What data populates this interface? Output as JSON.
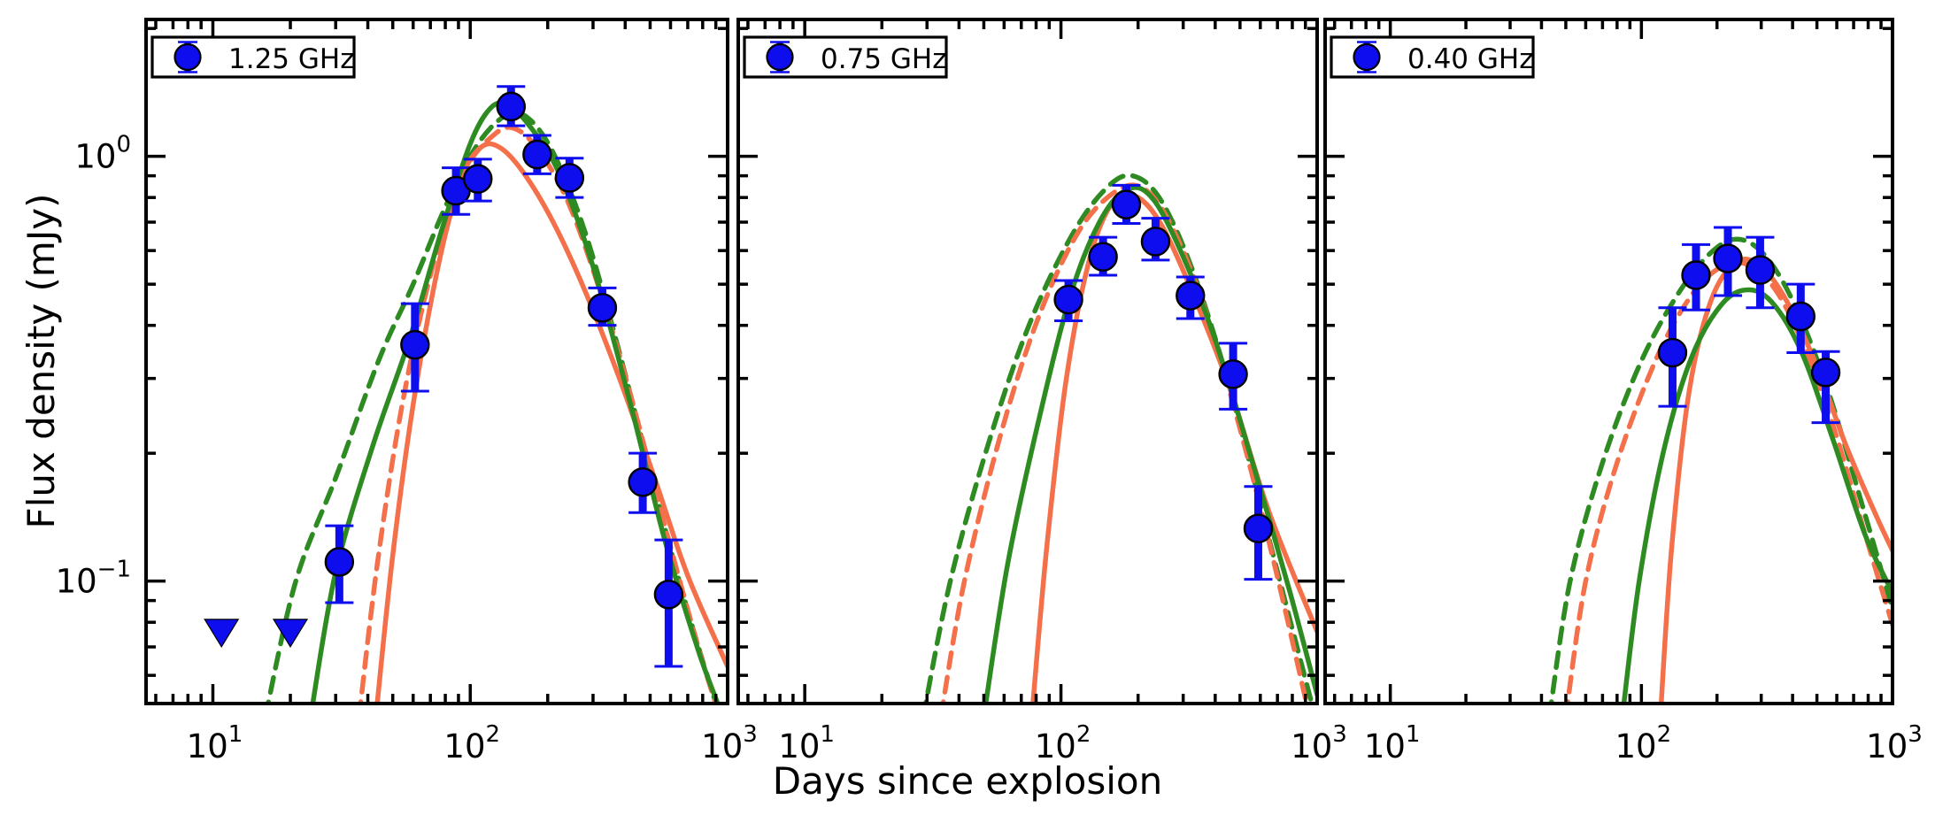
{
  "figure": {
    "xlabel": "Days since explosion",
    "ylabel": "Flux density (mJy)",
    "background": "#ffffff",
    "colors": {
      "points": "#0d0dee",
      "point_edge": "#000000",
      "model_green": "#2e8b22",
      "model_orange": "#f4704b",
      "axis": "#000000"
    },
    "x_tick_labels": [
      {
        "v": 10,
        "exp": "1"
      },
      {
        "v": 100,
        "exp": "2"
      },
      {
        "v": 1000,
        "exp": "3"
      }
    ],
    "y_tick_labels": [
      {
        "v": 1,
        "exp": "0"
      },
      {
        "v": 0.1,
        "exp": "−1"
      }
    ]
  },
  "chart_data": [
    {
      "type": "scatter",
      "legend": "1.25 GHz",
      "xscale": "log",
      "yscale": "log",
      "xlim": [
        5.5,
        1000
      ],
      "ylim": [
        0.0515,
        2.1
      ],
      "points": [
        {
          "t": 31,
          "f": 0.111,
          "lo": 0.089,
          "hi": 0.135
        },
        {
          "t": 61,
          "f": 0.36,
          "lo": 0.28,
          "hi": 0.45
        },
        {
          "t": 88,
          "f": 0.83,
          "lo": 0.73,
          "hi": 0.94
        },
        {
          "t": 107,
          "f": 0.885,
          "lo": 0.785,
          "hi": 0.985
        },
        {
          "t": 144,
          "f": 1.31,
          "lo": 1.18,
          "hi": 1.46
        },
        {
          "t": 182,
          "f": 1.01,
          "lo": 0.91,
          "hi": 1.12
        },
        {
          "t": 243,
          "f": 0.89,
          "lo": 0.8,
          "hi": 0.99
        },
        {
          "t": 326,
          "f": 0.44,
          "lo": 0.4,
          "hi": 0.49
        },
        {
          "t": 468,
          "f": 0.171,
          "lo": 0.145,
          "hi": 0.2
        },
        {
          "t": 590,
          "f": 0.093,
          "lo": 0.063,
          "hi": 0.125
        }
      ],
      "upper_limits": [
        {
          "t": 10.8,
          "f": 0.076
        },
        {
          "t": 20,
          "f": 0.076
        }
      ],
      "curves": [
        {
          "name": "model-green-dashed",
          "color": "green",
          "style": "dashed",
          "points": [
            [
              16,
              0.048
            ],
            [
              21,
              0.1
            ],
            [
              30,
              0.175
            ],
            [
              44,
              0.33
            ],
            [
              60,
              0.5
            ],
            [
              80,
              0.76
            ],
            [
              105,
              1.05
            ],
            [
              135,
              1.24
            ],
            [
              165,
              1.24
            ],
            [
              210,
              1.02
            ],
            [
              280,
              0.66
            ],
            [
              380,
              0.345
            ],
            [
              520,
              0.165
            ],
            [
              700,
              0.085
            ],
            [
              1000,
              0.042
            ]
          ]
        },
        {
          "name": "model-orange-dashed",
          "color": "orange",
          "style": "dashed",
          "points": [
            [
              37,
              0.048
            ],
            [
              44,
              0.115
            ],
            [
              55,
              0.27
            ],
            [
              72,
              0.56
            ],
            [
              95,
              0.92
            ],
            [
              125,
              1.13
            ],
            [
              150,
              1.16
            ],
            [
              185,
              1.03
            ],
            [
              240,
              0.78
            ],
            [
              320,
              0.48
            ],
            [
              430,
              0.26
            ],
            [
              580,
              0.13
            ],
            [
              780,
              0.068
            ],
            [
              1000,
              0.042
            ]
          ]
        },
        {
          "name": "model-orange-solid",
          "color": "orange",
          "style": "solid",
          "points": [
            [
              43,
              0.048
            ],
            [
              50,
              0.115
            ],
            [
              60,
              0.26
            ],
            [
              75,
              0.55
            ],
            [
              92,
              0.88
            ],
            [
              110,
              1.05
            ],
            [
              130,
              1.05
            ],
            [
              160,
              0.92
            ],
            [
              210,
              0.7
            ],
            [
              280,
              0.48
            ],
            [
              380,
              0.3
            ],
            [
              520,
              0.175
            ],
            [
              700,
              0.103
            ],
            [
              1000,
              0.063
            ]
          ]
        },
        {
          "name": "model-green-solid",
          "color": "green",
          "style": "solid",
          "points": [
            [
              24,
              0.048
            ],
            [
              30,
              0.105
            ],
            [
              42,
              0.21
            ],
            [
              58,
              0.37
            ],
            [
              78,
              0.68
            ],
            [
              100,
              1.07
            ],
            [
              120,
              1.3
            ],
            [
              140,
              1.32
            ],
            [
              170,
              1.18
            ],
            [
              220,
              0.92
            ],
            [
              300,
              0.55
            ],
            [
              420,
              0.26
            ],
            [
              570,
              0.125
            ],
            [
              780,
              0.067
            ],
            [
              1000,
              0.045
            ]
          ]
        }
      ]
    },
    {
      "type": "scatter",
      "legend": "0.75 GHz",
      "xscale": "log",
      "yscale": "log",
      "xlim": [
        5.5,
        1000
      ],
      "ylim": [
        0.0515,
        2.1
      ],
      "points": [
        {
          "t": 107,
          "f": 0.46,
          "lo": 0.41,
          "hi": 0.51
        },
        {
          "t": 146,
          "f": 0.58,
          "lo": 0.525,
          "hi": 0.645
        },
        {
          "t": 180,
          "f": 0.77,
          "lo": 0.695,
          "hi": 0.855
        },
        {
          "t": 234,
          "f": 0.63,
          "lo": 0.57,
          "hi": 0.715
        },
        {
          "t": 320,
          "f": 0.47,
          "lo": 0.415,
          "hi": 0.52
        },
        {
          "t": 470,
          "f": 0.307,
          "lo": 0.254,
          "hi": 0.363
        },
        {
          "t": 589,
          "f": 0.133,
          "lo": 0.101,
          "hi": 0.167
        }
      ],
      "upper_limits": [],
      "curves": [
        {
          "name": "model-green-dashed",
          "color": "green",
          "style": "dashed",
          "points": [
            [
              29,
              0.048
            ],
            [
              37,
              0.1
            ],
            [
              52,
              0.21
            ],
            [
              75,
              0.4
            ],
            [
              110,
              0.65
            ],
            [
              150,
              0.84
            ],
            [
              190,
              0.9
            ],
            [
              245,
              0.79
            ],
            [
              330,
              0.53
            ],
            [
              460,
              0.28
            ],
            [
              650,
              0.125
            ],
            [
              1000,
              0.046
            ]
          ]
        },
        {
          "name": "model-orange-dashed",
          "color": "orange",
          "style": "dashed",
          "points": [
            [
              34,
              0.048
            ],
            [
              42,
              0.1
            ],
            [
              58,
              0.22
            ],
            [
              82,
              0.42
            ],
            [
              118,
              0.67
            ],
            [
              165,
              0.83
            ],
            [
              210,
              0.84
            ],
            [
              265,
              0.7
            ],
            [
              350,
              0.47
            ],
            [
              480,
              0.25
            ],
            [
              680,
              0.11
            ],
            [
              1000,
              0.04
            ]
          ]
        },
        {
          "name": "model-orange-solid",
          "color": "orange",
          "style": "solid",
          "points": [
            [
              77,
              0.048
            ],
            [
              88,
              0.12
            ],
            [
              105,
              0.3
            ],
            [
              130,
              0.58
            ],
            [
              162,
              0.79
            ],
            [
              200,
              0.8
            ],
            [
              250,
              0.68
            ],
            [
              330,
              0.47
            ],
            [
              460,
              0.28
            ],
            [
              650,
              0.145
            ],
            [
              1000,
              0.076
            ]
          ]
        },
        {
          "name": "model-green-solid",
          "color": "green",
          "style": "solid",
          "points": [
            [
              50,
              0.048
            ],
            [
              62,
              0.11
            ],
            [
              82,
              0.24
            ],
            [
              110,
              0.48
            ],
            [
              145,
              0.72
            ],
            [
              185,
              0.84
            ],
            [
              230,
              0.79
            ],
            [
              300,
              0.58
            ],
            [
              400,
              0.37
            ],
            [
              560,
              0.19
            ],
            [
              780,
              0.095
            ],
            [
              1000,
              0.054
            ]
          ]
        }
      ]
    },
    {
      "type": "scatter",
      "legend": "0.40 GHz",
      "xscale": "log",
      "yscale": "log",
      "xlim": [
        5.5,
        1000
      ],
      "ylim": [
        0.0515,
        2.1
      ],
      "points": [
        {
          "t": 133,
          "f": 0.345,
          "lo": 0.258,
          "hi": 0.44
        },
        {
          "t": 165,
          "f": 0.525,
          "lo": 0.435,
          "hi": 0.62
        },
        {
          "t": 221,
          "f": 0.575,
          "lo": 0.47,
          "hi": 0.68
        },
        {
          "t": 297,
          "f": 0.54,
          "lo": 0.44,
          "hi": 0.645
        },
        {
          "t": 431,
          "f": 0.42,
          "lo": 0.345,
          "hi": 0.5
        },
        {
          "t": 542,
          "f": 0.31,
          "lo": 0.236,
          "hi": 0.347
        }
      ],
      "upper_limits": [],
      "curves": [
        {
          "name": "model-green-dashed",
          "color": "green",
          "style": "dashed",
          "points": [
            [
              43,
              0.048
            ],
            [
              52,
              0.1
            ],
            [
              70,
              0.19
            ],
            [
              100,
              0.33
            ],
            [
              145,
              0.49
            ],
            [
              200,
              0.61
            ],
            [
              255,
              0.635
            ],
            [
              325,
              0.565
            ],
            [
              420,
              0.43
            ],
            [
              560,
              0.275
            ],
            [
              760,
              0.15
            ],
            [
              1000,
              0.086
            ]
          ]
        },
        {
          "name": "model-orange-dashed",
          "color": "orange",
          "style": "dashed",
          "points": [
            [
              50,
              0.048
            ],
            [
              60,
              0.1
            ],
            [
              80,
              0.19
            ],
            [
              115,
              0.335
            ],
            [
              160,
              0.475
            ],
            [
              215,
              0.555
            ],
            [
              275,
              0.55
            ],
            [
              350,
              0.475
            ],
            [
              450,
              0.35
            ],
            [
              590,
              0.225
            ],
            [
              790,
              0.125
            ],
            [
              1000,
              0.079
            ]
          ]
        },
        {
          "name": "model-orange-solid",
          "color": "orange",
          "style": "solid",
          "points": [
            [
              119,
              0.048
            ],
            [
              132,
              0.12
            ],
            [
              155,
              0.28
            ],
            [
              190,
              0.46
            ],
            [
              240,
              0.565
            ],
            [
              300,
              0.55
            ],
            [
              380,
              0.455
            ],
            [
              500,
              0.32
            ],
            [
              650,
              0.21
            ],
            [
              850,
              0.145
            ],
            [
              1000,
              0.118
            ]
          ]
        },
        {
          "name": "model-green-solid",
          "color": "green",
          "style": "solid",
          "points": [
            [
              84,
              0.048
            ],
            [
              98,
              0.1
            ],
            [
              122,
              0.2
            ],
            [
              158,
              0.335
            ],
            [
              210,
              0.45
            ],
            [
              270,
              0.485
            ],
            [
              340,
              0.445
            ],
            [
              440,
              0.34
            ],
            [
              580,
              0.215
            ],
            [
              780,
              0.128
            ],
            [
              1000,
              0.094
            ]
          ]
        }
      ]
    }
  ]
}
